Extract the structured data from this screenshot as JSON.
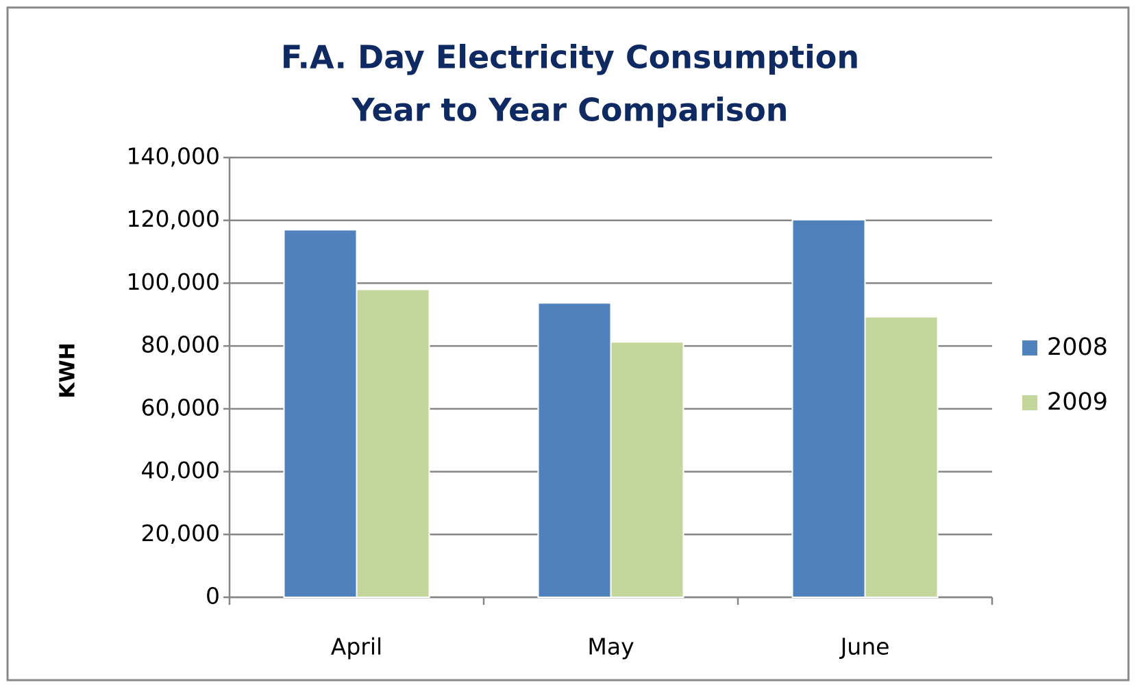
{
  "chart_data": {
    "type": "bar",
    "title": [
      "F.A. Day Electricity Consumption",
      "Year to Year Comparison"
    ],
    "y_label": "KWH",
    "categories": [
      "April",
      "May",
      "June"
    ],
    "series": [
      {
        "name": "2008",
        "color": "#4f81bd",
        "values": [
          117000,
          93700,
          120200
        ]
      },
      {
        "name": "2009",
        "color": "#c3d69b",
        "values": [
          98000,
          81300,
          89300
        ]
      }
    ],
    "ylim": [
      0,
      140000
    ],
    "yticks": [
      0,
      {
        "value": 20000,
        "label": "20,000"
      },
      {
        "value": 40000,
        "label": "40,000"
      },
      {
        "value": 60000,
        "label": "60,000"
      },
      {
        "value": 80000,
        "label": "80,000"
      },
      {
        "value": 100000,
        "label": "100,000"
      },
      {
        "value": 120000,
        "label": "120,000"
      },
      {
        "value": 140000,
        "label": "140,000"
      }
    ],
    "grid": true,
    "legend": "right"
  }
}
